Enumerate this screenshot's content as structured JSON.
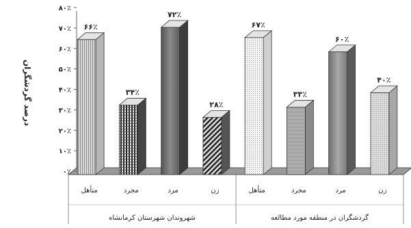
{
  "chart_data": {
    "type": "bar",
    "ylabel": "درصد گردشگران",
    "ylim": [
      0,
      80
    ],
    "yticks": [
      {
        "value": 0,
        "label": "۰٪"
      },
      {
        "value": 10,
        "label": "۱۰٪"
      },
      {
        "value": 20,
        "label": "۲۰٪"
      },
      {
        "value": 30,
        "label": "۳۰٪"
      },
      {
        "value": 40,
        "label": "۴۰٪"
      },
      {
        "value": 50,
        "label": "۵۰٪"
      },
      {
        "value": 60,
        "label": "۶۰٪"
      },
      {
        "value": 70,
        "label": "۷۰٪"
      },
      {
        "value": 80,
        "label": "۸۰٪"
      }
    ],
    "grid": false,
    "groups": [
      {
        "label": "شهروندان شهرستان کرمانشاه",
        "bars": [
          {
            "category": "متأهل",
            "value": 66,
            "label": "۶۶٪",
            "pattern": "vlines-fine"
          },
          {
            "category": "مجرد",
            "value": 34,
            "label": "۳۴٪",
            "pattern": "grid-dark"
          },
          {
            "category": "مرد",
            "value": 72,
            "label": "۷۲٪",
            "pattern": "solid-dark"
          },
          {
            "category": "زن",
            "value": 28,
            "label": "۲۸٪",
            "pattern": "diag-dark"
          }
        ]
      },
      {
        "label": "گردشگران در منطقه مورد مطالعه",
        "bars": [
          {
            "category": "متأهل",
            "value": 67,
            "label": "۶۷٪",
            "pattern": "dots-light"
          },
          {
            "category": "مجرد",
            "value": 33,
            "label": "۳۳٪",
            "pattern": "hlines-mid"
          },
          {
            "category": "مرد",
            "value": 60,
            "label": "۶۰٪",
            "pattern": "gradient-mid"
          },
          {
            "category": "زن",
            "value": 40,
            "label": "۴۰٪",
            "pattern": "dots-fine"
          }
        ]
      }
    ]
  }
}
